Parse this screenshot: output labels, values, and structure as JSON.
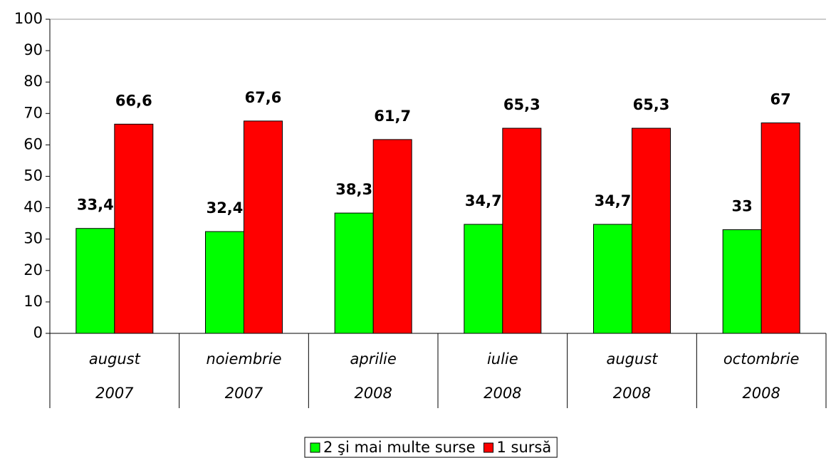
{
  "chart_data": {
    "type": "bar",
    "categories": [
      [
        "august",
        "2007"
      ],
      [
        "noiembrie",
        "2007"
      ],
      [
        "aprilie",
        "2008"
      ],
      [
        "iulie",
        "2008"
      ],
      [
        "august",
        "2008"
      ],
      [
        "octombrie",
        "2008"
      ]
    ],
    "series": [
      {
        "name": "2 şi mai multe surse",
        "color": "#00ff00",
        "values": [
          33.4,
          32.4,
          38.3,
          34.7,
          34.7,
          33
        ],
        "value_labels": [
          "33,4",
          "32,4",
          "38,3",
          "34,7",
          "34,7",
          "33"
        ]
      },
      {
        "name": "1 sursă",
        "color": "#ff0000",
        "values": [
          66.6,
          67.6,
          61.7,
          65.3,
          65.3,
          67
        ],
        "value_labels": [
          "66,6",
          "67,6",
          "61,7",
          "65,3",
          "65,3",
          "67"
        ]
      }
    ],
    "ylim": [
      0,
      100
    ],
    "yticks": [
      0,
      10,
      20,
      30,
      40,
      50,
      60,
      70,
      80,
      90,
      100
    ],
    "legend": "bottom"
  }
}
